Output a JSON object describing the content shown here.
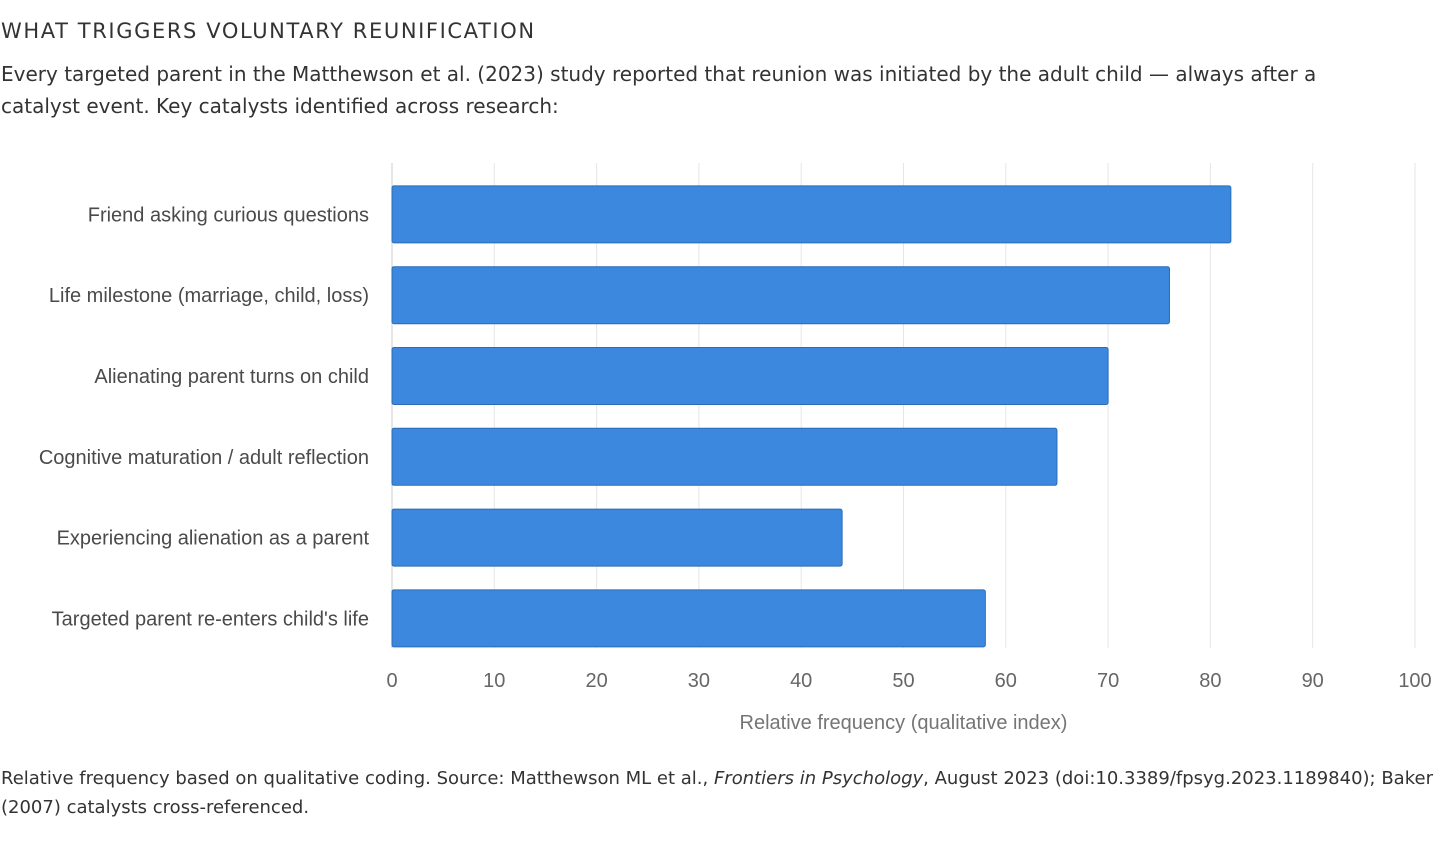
{
  "header": {
    "title": "WHAT TRIGGERS VOLUNTARY REUNIFICATION",
    "intro": "Every targeted parent in the Matthewson et al. (2023) study reported that reunion was initiated by the adult child — always after a catalyst event. Key catalysts identified across research:"
  },
  "chart_data": {
    "type": "bar",
    "orientation": "horizontal",
    "title": "",
    "categories": [
      "Friend asking curious questions",
      "Life milestone (marriage, child, loss)",
      "Alienating parent turns on child",
      "Cognitive maturation / adult reflection",
      "Experiencing alienation as a parent",
      "Targeted parent re-enters child's life"
    ],
    "values": [
      82,
      76,
      70,
      65,
      44,
      58
    ],
    "xlabel": "Relative frequency (qualitative index)",
    "ylabel": "",
    "xlim": [
      0,
      100
    ],
    "ticks": [
      0,
      10,
      20,
      30,
      40,
      50,
      60,
      70,
      80,
      90,
      100
    ],
    "grid": true,
    "legend": "none",
    "bar_color": "#3b88de"
  },
  "footer": {
    "caption_pre": "Relative frequency based on qualitative coding. Source: Matthewson ML et al., ",
    "caption_journal": "Frontiers in Psychology",
    "caption_post": ", August 2023 (doi:10.3389/fpsyg.2023.1189840); Baker (2007) catalysts cross-referenced."
  }
}
